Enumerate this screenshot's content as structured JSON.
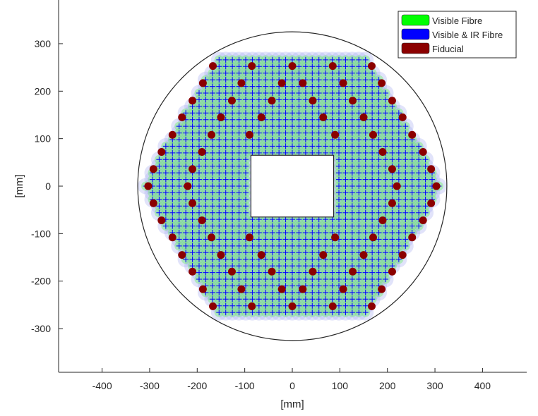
{
  "chart_data": {
    "type": "scatter",
    "title": "",
    "xlabel": "[mm]",
    "ylabel": "[mm]",
    "xlim": [
      -490,
      490
    ],
    "ylim": [
      -390,
      390
    ],
    "xticks": [
      -400,
      -300,
      -200,
      -100,
      0,
      100,
      200,
      300,
      400
    ],
    "yticks": [
      -300,
      -200,
      -100,
      0,
      100,
      200,
      300
    ],
    "xtick_labels": [
      "-400",
      "-300",
      "-200",
      "-100",
      "0",
      "100",
      "200",
      "300",
      "400"
    ],
    "ytick_labels": [
      "-300",
      "-200",
      "-100",
      "0",
      "100",
      "200",
      "300"
    ],
    "grid": false,
    "box": "left-bottom axes only",
    "legend": {
      "position": "top-right",
      "entries": [
        {
          "label": "Visible Fibre",
          "color": "#00ff00"
        },
        {
          "label": "Visible & IR Fibre",
          "color": "#0000ff"
        },
        {
          "label": "Fiducial",
          "color": "#8b0000"
        }
      ]
    },
    "field_circle": {
      "center": [
        0,
        0
      ],
      "radius": 325
    },
    "central_hole": {
      "x_range": [
        -87,
        87
      ],
      "y_range": [
        -65,
        65
      ]
    },
    "fibre_pattern": {
      "marker": "+",
      "color": "#0000ff",
      "halo_color": "#aab0f0",
      "visible_halo_color": "#70ee70",
      "pitch_x": 14,
      "pitch_y": 14,
      "envelope": "hexagon, x from -316 to 316 at y=0, top and bottom rows at y=+/-274 spanning x -155 to 155"
    },
    "series": [
      {
        "name": "Fiducial",
        "color": "#8b0000",
        "points": [
          [
            -167,
            253
          ],
          [
            -85,
            253
          ],
          [
            0,
            253
          ],
          [
            85,
            253
          ],
          [
            167,
            253
          ],
          [
            -188,
            217
          ],
          [
            -107,
            217
          ],
          [
            -22,
            217
          ],
          [
            22,
            217
          ],
          [
            107,
            217
          ],
          [
            188,
            217
          ],
          [
            -210,
            180
          ],
          [
            -127,
            180
          ],
          [
            -43,
            180
          ],
          [
            43,
            180
          ],
          [
            127,
            180
          ],
          [
            210,
            180
          ],
          [
            -232,
            145
          ],
          [
            -150,
            145
          ],
          [
            -65,
            145
          ],
          [
            65,
            145
          ],
          [
            150,
            145
          ],
          [
            232,
            145
          ],
          [
            -252,
            108
          ],
          [
            -170,
            108
          ],
          [
            -90,
            108
          ],
          [
            90,
            108
          ],
          [
            170,
            108
          ],
          [
            252,
            108
          ],
          [
            -275,
            72
          ],
          [
            -190,
            72
          ],
          [
            190,
            72
          ],
          [
            275,
            72
          ],
          [
            -292,
            36
          ],
          [
            -210,
            36
          ],
          [
            210,
            36
          ],
          [
            292,
            36
          ],
          [
            -303,
            0
          ],
          [
            -220,
            0
          ],
          [
            220,
            0
          ],
          [
            303,
            0
          ],
          [
            -292,
            -36
          ],
          [
            -210,
            -36
          ],
          [
            210,
            -36
          ],
          [
            292,
            -36
          ],
          [
            -275,
            -72
          ],
          [
            -190,
            -72
          ],
          [
            190,
            -72
          ],
          [
            275,
            -72
          ],
          [
            -252,
            -108
          ],
          [
            -170,
            -108
          ],
          [
            -90,
            -108
          ],
          [
            90,
            -108
          ],
          [
            170,
            -108
          ],
          [
            252,
            -108
          ],
          [
            -232,
            -145
          ],
          [
            -150,
            -145
          ],
          [
            -65,
            -145
          ],
          [
            65,
            -145
          ],
          [
            150,
            -145
          ],
          [
            232,
            -145
          ],
          [
            -210,
            -180
          ],
          [
            -127,
            -180
          ],
          [
            -43,
            -180
          ],
          [
            43,
            -180
          ],
          [
            127,
            -180
          ],
          [
            210,
            -180
          ],
          [
            -188,
            -217
          ],
          [
            -107,
            -217
          ],
          [
            -22,
            -217
          ],
          [
            22,
            -217
          ],
          [
            107,
            -217
          ],
          [
            188,
            -217
          ],
          [
            -167,
            -253
          ],
          [
            -85,
            -253
          ],
          [
            0,
            -253
          ],
          [
            85,
            -253
          ],
          [
            167,
            -253
          ]
        ]
      }
    ]
  }
}
